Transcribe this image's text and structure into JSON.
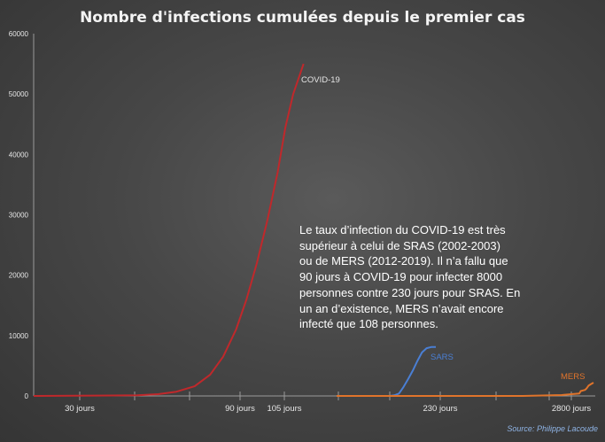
{
  "chart_data": {
    "type": "line",
    "title": "Nombre d'infections cumulées depuis le premier cas",
    "xlabel": "",
    "ylabel": "",
    "ylim": [
      0,
      60000
    ],
    "y_ticks": [
      "0",
      "10000",
      "20000",
      "30000",
      "40000",
      "50000",
      "60000"
    ],
    "x_tick_labels": [
      "30 jours",
      "90 jours",
      "105 jours",
      "230 jours",
      "2800 jours"
    ],
    "grid": false,
    "series": [
      {
        "name": "COVID-19",
        "color": "#c0282b",
        "points": [
          {
            "t": 0,
            "v": 0
          },
          {
            "t": 0.4,
            "v": 100
          },
          {
            "t": 0.48,
            "v": 300
          },
          {
            "t": 0.55,
            "v": 700
          },
          {
            "t": 0.62,
            "v": 1600
          },
          {
            "t": 0.68,
            "v": 3500
          },
          {
            "t": 0.73,
            "v": 6500
          },
          {
            "t": 0.78,
            "v": 11000
          },
          {
            "t": 0.82,
            "v": 16000
          },
          {
            "t": 0.86,
            "v": 22000
          },
          {
            "t": 0.9,
            "v": 29000
          },
          {
            "t": 0.94,
            "v": 37000
          },
          {
            "t": 0.97,
            "v": 44500
          },
          {
            "t": 1.0,
            "v": 50000
          },
          {
            "t": 1.04,
            "v": 55000
          }
        ]
      },
      {
        "name": "SARS",
        "color": "#4a7fd4",
        "points": [
          {
            "t": 0,
            "v": 0
          },
          {
            "t": 0.1,
            "v": 100
          },
          {
            "t": 0.2,
            "v": 400
          },
          {
            "t": 0.3,
            "v": 1500
          },
          {
            "t": 0.4,
            "v": 2800
          },
          {
            "t": 0.5,
            "v": 4200
          },
          {
            "t": 0.6,
            "v": 5800
          },
          {
            "t": 0.7,
            "v": 7200
          },
          {
            "t": 0.8,
            "v": 7900
          },
          {
            "t": 0.9,
            "v": 8100
          },
          {
            "t": 1.0,
            "v": 8100
          }
        ]
      },
      {
        "name": "MERS",
        "color": "#e0742b",
        "points": [
          {
            "t": 0,
            "v": 0
          },
          {
            "t": 0.55,
            "v": 150
          },
          {
            "t": 0.8,
            "v": 400
          },
          {
            "t": 0.82,
            "v": 800
          },
          {
            "t": 0.88,
            "v": 1000
          },
          {
            "t": 0.9,
            "v": 1200
          },
          {
            "t": 0.93,
            "v": 1700
          },
          {
            "t": 0.97,
            "v": 2000
          },
          {
            "t": 1.0,
            "v": 2200
          }
        ]
      }
    ]
  },
  "annotation_lines": [
    "Le taux d’infection du COVID-19 est très",
    "supérieur à celui de SRAS (2002-2003)",
    "ou de MERS (2012-2019). Il n’a fallu que",
    "90 jours à COVID-19 pour infecter 8000",
    "personnes contre 230 jours pour SRAS. En",
    "un an d’existence, MERS n’avait encore",
    "infecté que 108 personnes."
  ],
  "source": "Source: Philippe Lacoude",
  "colors": {
    "background": "#474747",
    "axis": "#9a9a9a",
    "text": "#e6e6e6"
  }
}
